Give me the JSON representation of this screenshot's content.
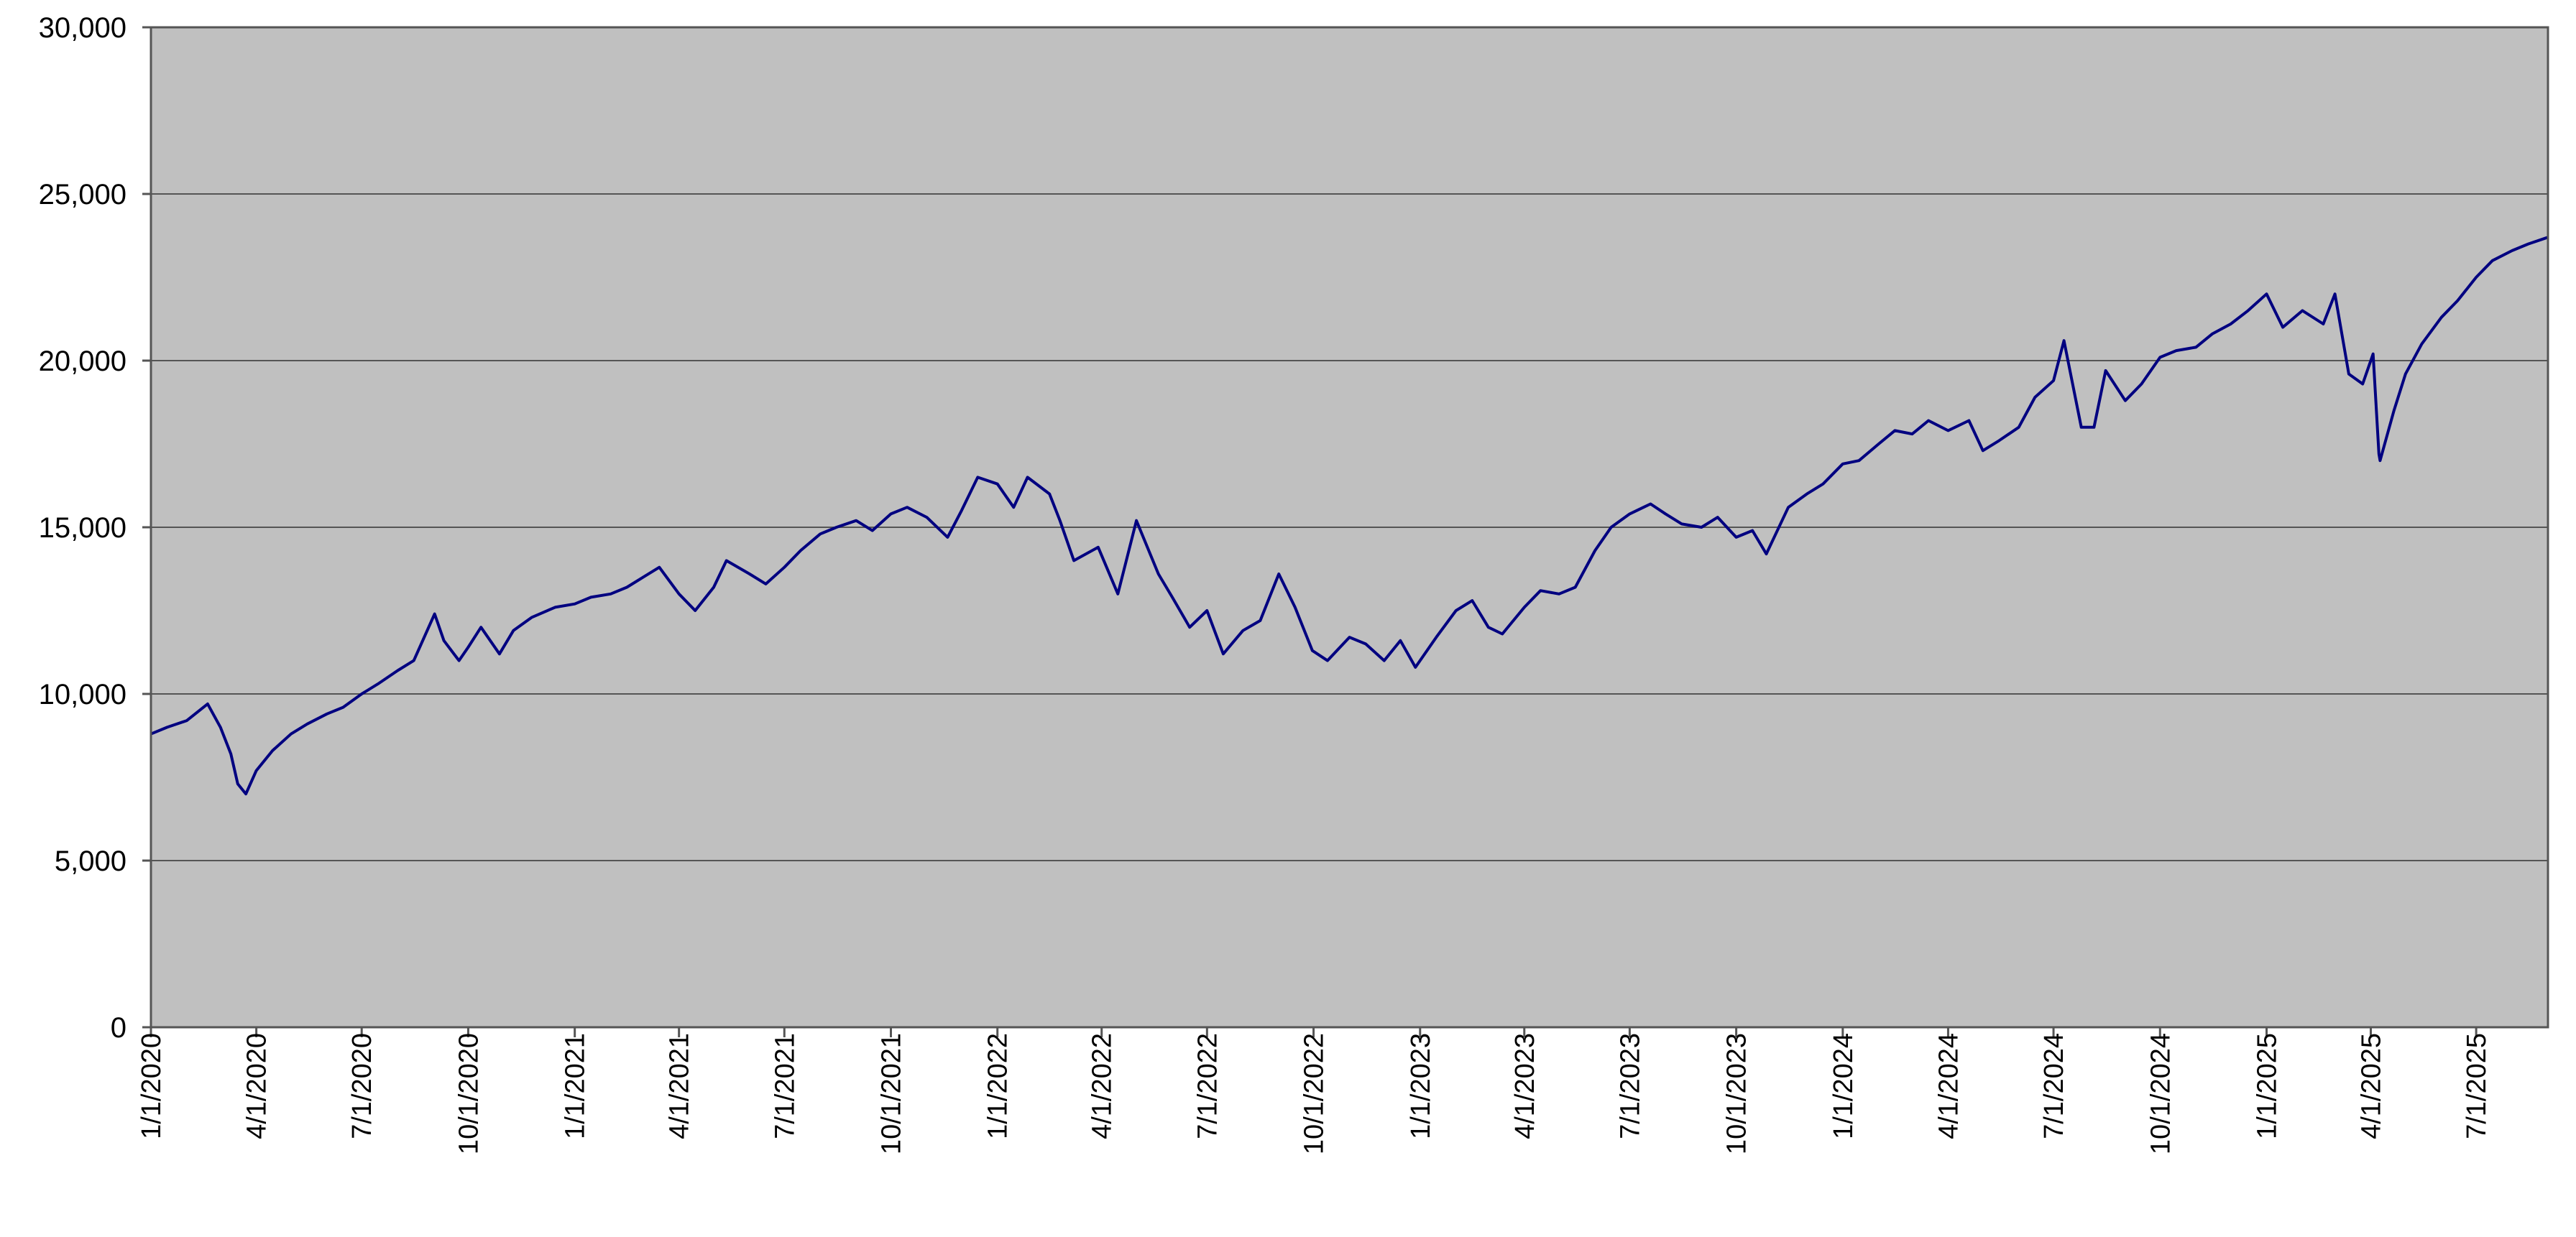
{
  "colors": {
    "plot_background": "#C0C0C0",
    "series_line": "#000080",
    "gridline": "#555555",
    "axis": "#555555",
    "page_background": "#FFFFFF"
  },
  "chart_data": {
    "type": "line",
    "title": "",
    "xlabel": "",
    "ylabel": "",
    "x_axis_type": "date",
    "xlim": [
      "2020-01-01",
      "2025-09-01"
    ],
    "ylim": [
      0,
      30000
    ],
    "y_ticks": [
      0,
      5000,
      10000,
      15000,
      20000,
      25000,
      30000
    ],
    "y_tick_labels": [
      "0",
      "5,000",
      "10,000",
      "15,000",
      "20,000",
      "25,000",
      "30,000"
    ],
    "x_ticks": [
      "2020-01-01",
      "2020-04-01",
      "2020-07-01",
      "2020-10-01",
      "2021-01-01",
      "2021-04-01",
      "2021-07-01",
      "2021-10-01",
      "2022-01-01",
      "2022-04-01",
      "2022-07-01",
      "2022-10-01",
      "2023-01-01",
      "2023-04-01",
      "2023-07-01",
      "2023-10-01",
      "2024-01-01",
      "2024-04-01",
      "2024-07-01",
      "2024-10-01",
      "2025-01-01",
      "2025-04-01",
      "2025-07-01"
    ],
    "x_tick_labels": [
      "1/1/2020",
      "4/1/2020",
      "7/1/2020",
      "10/1/2020",
      "1/1/2021",
      "4/1/2021",
      "7/1/2021",
      "10/1/2021",
      "1/1/2022",
      "4/1/2022",
      "7/1/2022",
      "10/1/2022",
      "1/1/2023",
      "4/1/2023",
      "7/1/2023",
      "10/1/2023",
      "1/1/2024",
      "4/1/2024",
      "7/1/2024",
      "10/1/2024",
      "1/1/2025",
      "4/1/2025",
      "7/1/2025"
    ],
    "grid": {
      "horizontal": true,
      "vertical": false
    },
    "legend": "none",
    "series": [
      {
        "x": [
          "2020-01-01",
          "2020-01-15",
          "2020-02-01",
          "2020-02-19",
          "2020-03-01",
          "2020-03-10",
          "2020-03-16",
          "2020-03-23",
          "2020-04-01",
          "2020-04-15",
          "2020-05-01",
          "2020-05-15",
          "2020-06-01",
          "2020-06-15",
          "2020-07-01",
          "2020-07-15",
          "2020-08-01",
          "2020-08-15",
          "2020-09-02",
          "2020-09-10",
          "2020-09-23",
          "2020-10-01",
          "2020-10-12",
          "2020-10-28",
          "2020-11-09",
          "2020-11-25",
          "2020-12-15",
          "2021-01-01",
          "2021-01-15",
          "2021-02-01",
          "2021-02-15",
          "2021-03-01",
          "2021-03-15",
          "2021-04-01",
          "2021-04-15",
          "2021-05-01",
          "2021-05-12",
          "2021-06-01",
          "2021-06-15",
          "2021-07-01",
          "2021-07-15",
          "2021-08-01",
          "2021-08-15",
          "2021-09-01",
          "2021-09-15",
          "2021-10-01",
          "2021-10-15",
          "2021-11-01",
          "2021-11-19",
          "2021-12-01",
          "2021-12-15",
          "2022-01-01",
          "2022-01-15",
          "2022-01-27",
          "2022-02-15",
          "2022-02-24",
          "2022-03-08",
          "2022-03-29",
          "2022-04-15",
          "2022-05-01",
          "2022-05-20",
          "2022-06-01",
          "2022-06-16",
          "2022-07-01",
          "2022-07-15",
          "2022-08-01",
          "2022-08-16",
          "2022-09-01",
          "2022-09-15",
          "2022-09-30",
          "2022-10-13",
          "2022-11-01",
          "2022-11-15",
          "2022-12-01",
          "2022-12-15",
          "2022-12-28",
          "2023-01-15",
          "2023-02-01",
          "2023-02-15",
          "2023-03-01",
          "2023-03-13",
          "2023-04-01",
          "2023-04-15",
          "2023-05-01",
          "2023-05-15",
          "2023-06-01",
          "2023-06-15",
          "2023-07-01",
          "2023-07-19",
          "2023-08-01",
          "2023-08-15",
          "2023-09-01",
          "2023-09-15",
          "2023-10-01",
          "2023-10-15",
          "2023-10-27",
          "2023-11-15",
          "2023-12-01",
          "2023-12-15",
          "2024-01-01",
          "2024-01-15",
          "2024-02-01",
          "2024-02-15",
          "2024-03-01",
          "2024-03-15",
          "2024-04-01",
          "2024-04-19",
          "2024-05-01",
          "2024-05-15",
          "2024-06-01",
          "2024-06-15",
          "2024-07-01",
          "2024-07-10",
          "2024-07-25",
          "2024-08-05",
          "2024-08-15",
          "2024-09-01",
          "2024-09-15",
          "2024-10-01",
          "2024-10-15",
          "2024-11-01",
          "2024-11-15",
          "2024-12-01",
          "2024-12-16",
          "2025-01-01",
          "2025-01-15",
          "2025-02-01",
          "2025-02-19",
          "2025-03-01",
          "2025-03-13",
          "2025-03-25",
          "2025-04-03",
          "2025-04-08",
          "2025-04-09",
          "2025-04-21",
          "2025-05-01",
          "2025-05-15",
          "2025-06-01",
          "2025-06-15",
          "2025-07-01",
          "2025-07-15",
          "2025-08-01",
          "2025-08-15",
          "2025-09-01"
        ],
        "y": [
          8800,
          9000,
          9200,
          9700,
          9000,
          8200,
          7300,
          7000,
          7700,
          8300,
          8800,
          9100,
          9400,
          9600,
          10000,
          10300,
          10700,
          11000,
          12400,
          11600,
          11000,
          11400,
          12000,
          11200,
          11900,
          12300,
          12600,
          12700,
          12900,
          13000,
          13200,
          13500,
          13800,
          13000,
          12500,
          13200,
          14000,
          13600,
          13300,
          13800,
          14300,
          14800,
          15000,
          15200,
          14900,
          15400,
          15600,
          15300,
          14700,
          15500,
          16500,
          16300,
          15600,
          16500,
          16000,
          15200,
          14000,
          14400,
          13000,
          15200,
          13600,
          12900,
          12000,
          12500,
          11200,
          11900,
          12200,
          13600,
          12600,
          11300,
          11000,
          11700,
          11500,
          11000,
          11600,
          10800,
          11700,
          12500,
          12800,
          12000,
          11800,
          12600,
          13100,
          13000,
          13200,
          14300,
          15000,
          15400,
          15700,
          15400,
          15100,
          15000,
          15300,
          14700,
          14900,
          14200,
          15600,
          16000,
          16300,
          16900,
          17000,
          17500,
          17900,
          17800,
          18200,
          17900,
          18200,
          17300,
          17600,
          18000,
          18900,
          19400,
          20600,
          18000,
          18000,
          19700,
          18800,
          19300,
          20100,
          20300,
          20400,
          20800,
          21100,
          21500,
          22000,
          21000,
          21500,
          21100,
          22000,
          19600,
          19300,
          20200,
          17200,
          17000,
          18500,
          19600,
          20500,
          21300,
          21800,
          22500,
          23000,
          23300,
          23500,
          23700
        ]
      }
    ]
  }
}
